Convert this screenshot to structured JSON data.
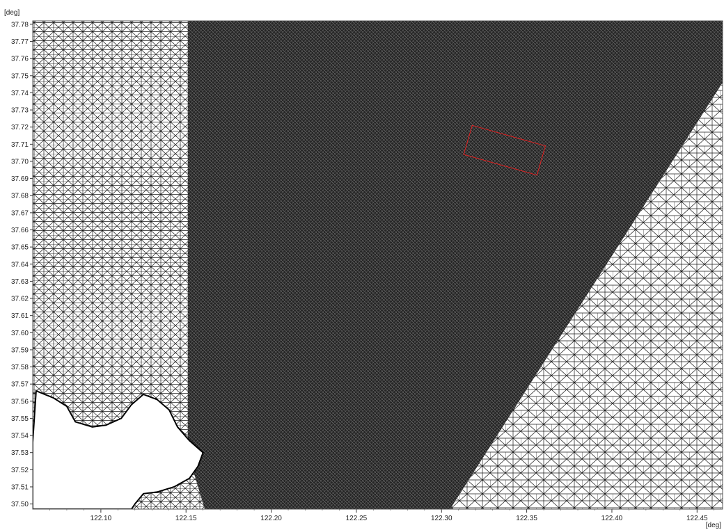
{
  "chart_data": {
    "type": "mesh",
    "x_unit": "[deg]",
    "y_unit": "[deg]",
    "xlim": [
      122.06,
      122.465
    ],
    "ylim": [
      37.497,
      37.782
    ],
    "x_ticks": [
      "122.10",
      "122.15",
      "122.20",
      "122.25",
      "122.30",
      "122.35",
      "122.40",
      "122.45"
    ],
    "y_ticks": [
      "37.78",
      "37.77",
      "37.76",
      "37.75",
      "37.74",
      "37.73",
      "37.72",
      "37.71",
      "37.70",
      "37.69",
      "37.68",
      "37.67",
      "37.66",
      "37.65",
      "37.64",
      "37.63",
      "37.62",
      "37.61",
      "37.60",
      "37.59",
      "37.58",
      "37.57",
      "37.56",
      "37.55",
      "37.54",
      "37.53",
      "37.52",
      "37.51",
      "37.50"
    ],
    "regions": {
      "fine_mesh": [
        [
          122.151,
          37.782
        ],
        [
          122.465,
          37.782
        ],
        [
          122.465,
          37.746
        ],
        [
          122.305,
          37.497
        ],
        [
          122.161,
          37.497
        ],
        [
          122.151,
          37.53
        ]
      ],
      "coastline": [
        [
          122.06,
          37.536
        ],
        [
          122.062,
          37.566
        ],
        [
          122.072,
          37.562
        ],
        [
          122.08,
          37.557
        ],
        [
          122.085,
          37.548
        ],
        [
          122.095,
          37.545
        ],
        [
          122.103,
          37.546
        ],
        [
          122.112,
          37.55
        ],
        [
          122.118,
          37.558
        ],
        [
          122.125,
          37.564
        ],
        [
          122.133,
          37.561
        ],
        [
          122.14,
          37.555
        ],
        [
          122.145,
          37.545
        ],
        [
          122.152,
          37.537
        ],
        [
          122.16,
          37.53
        ],
        [
          122.157,
          37.522
        ],
        [
          122.152,
          37.515
        ],
        [
          122.143,
          37.51
        ],
        [
          122.133,
          37.507
        ],
        [
          122.125,
          37.506
        ],
        [
          122.12,
          37.5
        ],
        [
          122.118,
          37.497
        ],
        [
          122.06,
          37.497
        ]
      ]
    },
    "marker": {
      "color": "#e02020",
      "corners": [
        [
          122.318,
          37.721
        ],
        [
          122.361,
          37.709
        ],
        [
          122.356,
          37.692
        ],
        [
          122.313,
          37.704
        ]
      ]
    }
  }
}
